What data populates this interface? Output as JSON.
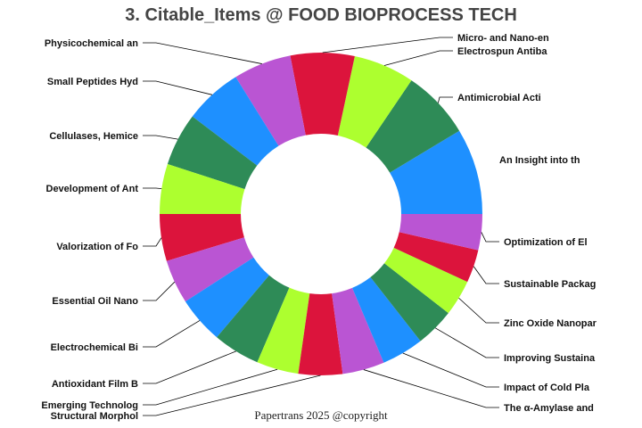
{
  "chart_data": {
    "type": "pie",
    "donut": true,
    "title": "3. Citable_Items @ FOOD BIOPROCESS TECH",
    "categories": [
      "An Insight into th",
      "Antimicrobial Acti",
      "Electrospun Antiba",
      "Micro- and Nano-en",
      "Physicochemical an",
      "Small Peptides Hyd",
      "Cellulases, Hemice",
      "Development of Ant",
      "Valorization of Fo",
      "Essential Oil Nano",
      "Electrochemical Bi",
      "Antioxidant Film B",
      "Emerging Technolog",
      "Structural Morphol",
      "The α-Amylase and",
      "Impact of Cold Pla",
      "Improving Sustaina",
      "Zinc Oxide Nanopar",
      "Sustainable Packag",
      "Optimization of El"
    ],
    "values": [
      8.6,
      6.9,
      6.1,
      6.4,
      5.8,
      5.8,
      5.3,
      5.0,
      4.7,
      4.4,
      4.7,
      4.7,
      4.2,
      4.4,
      4.2,
      4.2,
      3.9,
      3.6,
      3.3,
      3.6
    ],
    "colors": [
      "#1E90FF",
      "#2E8B57",
      "#ADFF2F",
      "#DC143C",
      "#BA55D3"
    ],
    "legend": "none"
  },
  "footer": "Papertrans 2025 @copyright"
}
